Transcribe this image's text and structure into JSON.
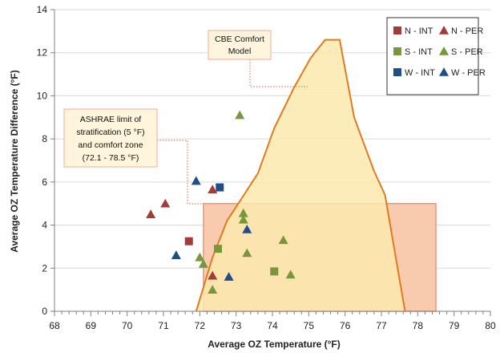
{
  "colors": {
    "red": "#A33B3A",
    "green": "#77973A",
    "blue": "#1E4E8C",
    "comfort_fill": "#FCE9AE",
    "comfort_edge": "#E07A1E",
    "ashrae_fill": "#F9CBAE",
    "ashrae_edge": "#E99585",
    "callout_fill": "#FFF5DD",
    "callout_border": "#F2B9A7",
    "leader": "#E47C64"
  },
  "chart_data": {
    "type": "scatter",
    "xlabel": "Average OZ Temperature (°F)",
    "ylabel": "Average OZ Temperature Difference (°F)",
    "xlim": [
      68,
      80
    ],
    "ylim": [
      0,
      14
    ],
    "x_ticks": [
      "68",
      "69",
      "70",
      "71",
      "72",
      "73",
      "74",
      "75",
      "76",
      "77",
      "78",
      "79",
      "80"
    ],
    "y_ticks": [
      "0",
      "2",
      "4",
      "6",
      "8",
      "10",
      "12",
      "14"
    ],
    "grid": "horizontal",
    "legend_position": "top-right",
    "series": [
      {
        "name": "N - INT",
        "marker": "square",
        "color": "red",
        "points": [
          [
            71.7,
            3.25
          ]
        ]
      },
      {
        "name": "N - PER",
        "marker": "triangle",
        "color": "red",
        "points": [
          [
            70.65,
            4.5
          ],
          [
            71.05,
            5.0
          ],
          [
            72.35,
            5.65
          ],
          [
            72.35,
            1.65
          ]
        ]
      },
      {
        "name": "S - INT",
        "marker": "square",
        "color": "green",
        "points": [
          [
            72.5,
            2.9
          ],
          [
            74.05,
            1.85
          ]
        ]
      },
      {
        "name": "S - PER",
        "marker": "triangle",
        "color": "green",
        "points": [
          [
            73.1,
            9.1
          ],
          [
            73.2,
            4.55
          ],
          [
            73.2,
            4.25
          ],
          [
            72.0,
            2.5
          ],
          [
            72.1,
            2.2
          ],
          [
            72.35,
            1.0
          ],
          [
            73.3,
            2.7
          ],
          [
            74.3,
            3.3
          ],
          [
            74.5,
            1.7
          ]
        ]
      },
      {
        "name": "W - INT",
        "marker": "square",
        "color": "blue",
        "points": [
          [
            72.55,
            5.75
          ]
        ]
      },
      {
        "name": "W - PER",
        "marker": "triangle",
        "color": "blue",
        "points": [
          [
            71.9,
            6.05
          ],
          [
            71.35,
            2.6
          ],
          [
            73.3,
            3.8
          ],
          [
            72.8,
            1.6
          ]
        ]
      }
    ],
    "regions": [
      {
        "name": "ASHRAE limit of stratification (5 °F) and comfort zone (72.1 - 78.5 °F)",
        "shape": "rectangle",
        "x": [
          72.1,
          78.5
        ],
        "y": [
          0,
          5
        ]
      },
      {
        "name": "CBE Comfort Model",
        "shape": "polygon",
        "points": [
          [
            71.9,
            0
          ],
          [
            72.35,
            2.5
          ],
          [
            72.75,
            4.2
          ],
          [
            73.1,
            5.1
          ],
          [
            73.6,
            6.4
          ],
          [
            74.05,
            8.5
          ],
          [
            74.6,
            10.4
          ],
          [
            75.05,
            11.75
          ],
          [
            75.45,
            12.6
          ],
          [
            75.85,
            12.6
          ],
          [
            76.25,
            9.0
          ],
          [
            76.8,
            6.5
          ],
          [
            77.1,
            5.4
          ],
          [
            77.65,
            0
          ]
        ]
      }
    ],
    "annotations": [
      {
        "id": "ashrae",
        "text_lines": [
          "ASHRAE limit of",
          "stratification (5 °F)",
          "and comfort zone",
          "(72.1 - 78.5 °F)"
        ]
      },
      {
        "id": "cbe",
        "text_lines": [
          "CBE Comfort",
          "Model"
        ]
      }
    ]
  }
}
